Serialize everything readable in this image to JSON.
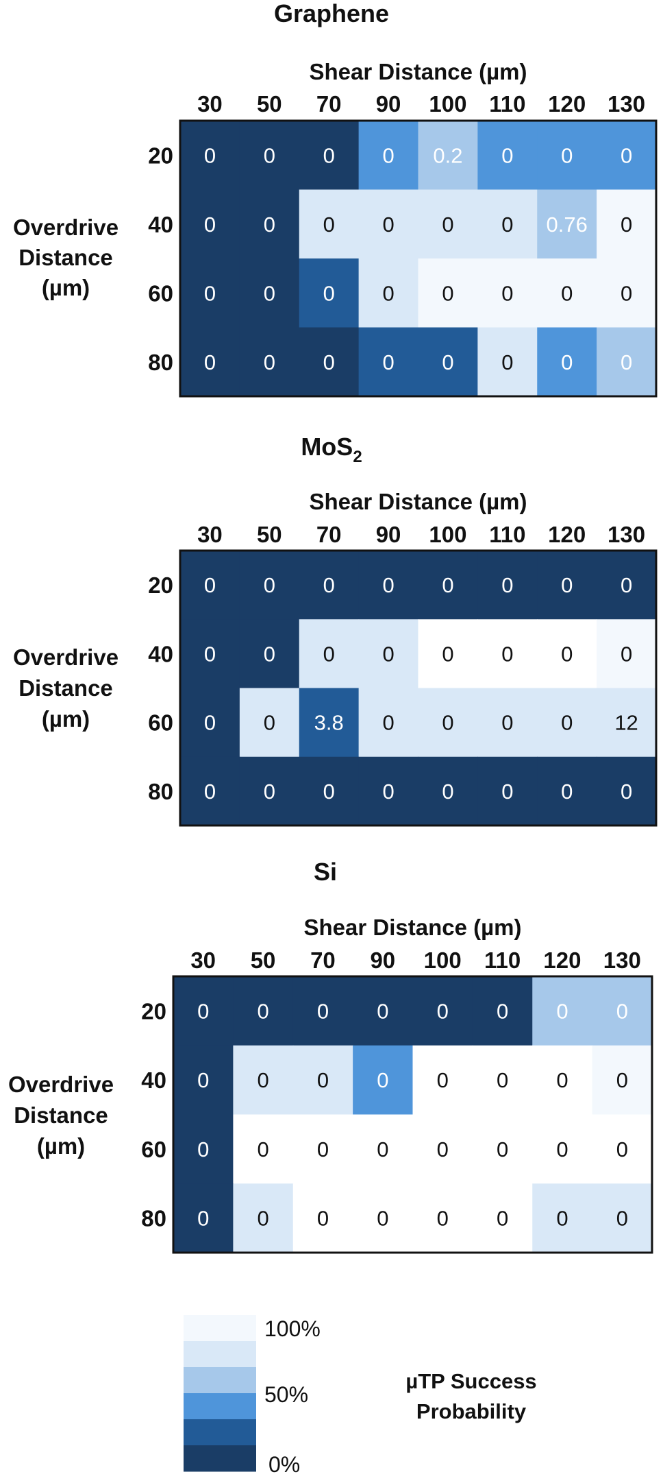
{
  "palette": [
    "#1a3d66",
    "#225b97",
    "#4f95da",
    "#a6c8ea",
    "#d9e8f7",
    "#f3f8fd",
    "#ffffff"
  ],
  "chart_data": [
    {
      "type": "heatmap",
      "title": "Graphene",
      "title_sub": "",
      "xlabel": "Shear Distance (µm)",
      "ylabel": [
        "Overdrive",
        "Distance",
        "(µm)"
      ],
      "x": [
        "30",
        "50",
        "70",
        "90",
        "100",
        "110",
        "120",
        "130"
      ],
      "y": [
        "20",
        "40",
        "60",
        "80"
      ],
      "colors": [
        [
          0,
          0,
          0,
          2,
          3,
          2,
          2,
          2
        ],
        [
          0,
          0,
          4,
          4,
          4,
          4,
          3,
          5
        ],
        [
          0,
          0,
          1,
          4,
          5,
          5,
          5,
          5
        ],
        [
          0,
          0,
          0,
          1,
          1,
          4,
          2,
          3
        ]
      ],
      "values": [
        [
          "0",
          "0",
          "0",
          "0",
          "0.2",
          "0",
          "0",
          "0"
        ],
        [
          "0",
          "0",
          "0",
          "0",
          "0",
          "0",
          "0.76",
          "0"
        ],
        [
          "0",
          "0",
          "0",
          "0",
          "0",
          "0",
          "0",
          "0"
        ],
        [
          "0",
          "0",
          "0",
          "0",
          "0",
          "0",
          "0",
          "0"
        ]
      ]
    },
    {
      "type": "heatmap",
      "title": "MoS",
      "title_sub": "2",
      "xlabel": "Shear Distance (µm)",
      "ylabel": [
        "Overdrive",
        "Distance",
        "(µm)"
      ],
      "x": [
        "30",
        "50",
        "70",
        "90",
        "100",
        "110",
        "120",
        "130"
      ],
      "y": [
        "20",
        "40",
        "60",
        "80"
      ],
      "colors": [
        [
          0,
          0,
          0,
          0,
          0,
          0,
          0,
          0
        ],
        [
          0,
          0,
          4,
          4,
          6,
          6,
          6,
          5
        ],
        [
          0,
          4,
          1,
          4,
          4,
          4,
          4,
          4
        ],
        [
          0,
          0,
          0,
          0,
          0,
          0,
          0,
          0
        ]
      ],
      "values": [
        [
          "0",
          "0",
          "0",
          "0",
          "0",
          "0",
          "0",
          "0"
        ],
        [
          "0",
          "0",
          "0",
          "0",
          "0",
          "0",
          "0",
          "0"
        ],
        [
          "0",
          "0",
          "3.8",
          "0",
          "0",
          "0",
          "0",
          "12"
        ],
        [
          "0",
          "0",
          "0",
          "0",
          "0",
          "0",
          "0",
          "0"
        ]
      ]
    },
    {
      "type": "heatmap",
      "title": "Si",
      "title_sub": "",
      "xlabel": "Shear Distance (µm)",
      "ylabel": [
        "Overdrive",
        "Distance",
        "(µm)"
      ],
      "x": [
        "30",
        "50",
        "70",
        "90",
        "100",
        "110",
        "120",
        "130"
      ],
      "y": [
        "20",
        "40",
        "60",
        "80"
      ],
      "colors": [
        [
          0,
          0,
          0,
          0,
          0,
          0,
          3,
          3
        ],
        [
          0,
          4,
          4,
          2,
          6,
          6,
          6,
          5
        ],
        [
          0,
          6,
          6,
          6,
          6,
          6,
          6,
          6
        ],
        [
          0,
          4,
          6,
          6,
          6,
          6,
          4,
          4
        ]
      ],
      "values": [
        [
          "0",
          "0",
          "0",
          "0",
          "0",
          "0",
          "0",
          "0"
        ],
        [
          "0",
          "0",
          "0",
          "0",
          "0",
          "0",
          "0",
          "0"
        ],
        [
          "0",
          "0",
          "0",
          "0",
          "0",
          "0",
          "0",
          "0"
        ],
        [
          "0",
          "0",
          "0",
          "0",
          "0",
          "0",
          "0",
          "0"
        ]
      ]
    }
  ],
  "legend": {
    "title": [
      "µTP Success",
      "Probability"
    ],
    "labels": [
      "100%",
      "50%",
      "0%"
    ],
    "swatches": [
      "#f3f8fd",
      "#d9e8f7",
      "#a6c8ea",
      "#4f95da",
      "#225b97",
      "#1a3d66"
    ]
  }
}
